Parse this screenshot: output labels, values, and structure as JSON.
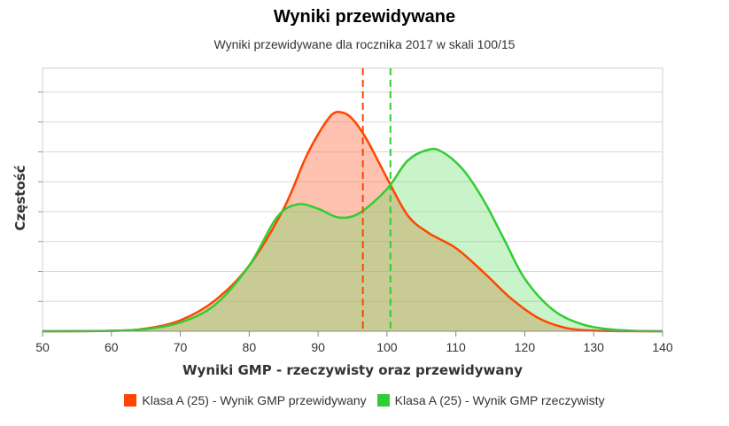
{
  "title": "Wyniki przewidywane",
  "subtitle": "Wyniki przewidywane dla rocznika 2017 w skali 100/15",
  "chart_data": {
    "type": "area",
    "xlabel": "Wyniki GMP - rzeczywisty oraz przewidywany",
    "ylabel": "Częstość",
    "xlim": [
      50,
      140
    ],
    "x_ticks": [
      50,
      60,
      70,
      80,
      90,
      100,
      110,
      120,
      130,
      140
    ],
    "ylim": [
      0,
      1.1
    ],
    "y_grid_lines": 8,
    "grid": true,
    "legend_position": "bottom",
    "series": [
      {
        "name": "Klasa A (25) - Wynik GMP przewidywany",
        "color": "#ff4500",
        "fill": "rgba(255,120,80,0.45)",
        "x": [
          50,
          60,
          65,
          70,
          75,
          80,
          85,
          88,
          90,
          92,
          93.5,
          95,
          97,
          100,
          103,
          106,
          110,
          114,
          118,
          122,
          126,
          130,
          135,
          140
        ],
        "y": [
          0,
          0.002,
          0.012,
          0.05,
          0.14,
          0.3,
          0.56,
          0.78,
          0.9,
          0.99,
          1.0,
          0.97,
          0.88,
          0.7,
          0.53,
          0.45,
          0.38,
          0.27,
          0.15,
          0.06,
          0.015,
          0.003,
          0.0005,
          0
        ],
        "mean": 96.5
      },
      {
        "name": "Klasa A (25) - Wynik GMP rzeczywisty",
        "color": "#33cc33",
        "fill": "rgba(100,220,100,0.35)",
        "x": [
          50,
          60,
          65,
          70,
          75,
          80,
          84,
          87,
          90,
          93,
          96,
          100,
          103,
          106,
          108,
          111,
          114,
          117,
          120,
          124,
          128,
          132,
          136,
          140
        ],
        "y": [
          0,
          0.002,
          0.01,
          0.04,
          0.12,
          0.3,
          0.52,
          0.58,
          0.56,
          0.52,
          0.54,
          0.65,
          0.78,
          0.83,
          0.82,
          0.74,
          0.6,
          0.42,
          0.24,
          0.1,
          0.035,
          0.01,
          0.002,
          0
        ],
        "mean": 100.5
      }
    ]
  }
}
